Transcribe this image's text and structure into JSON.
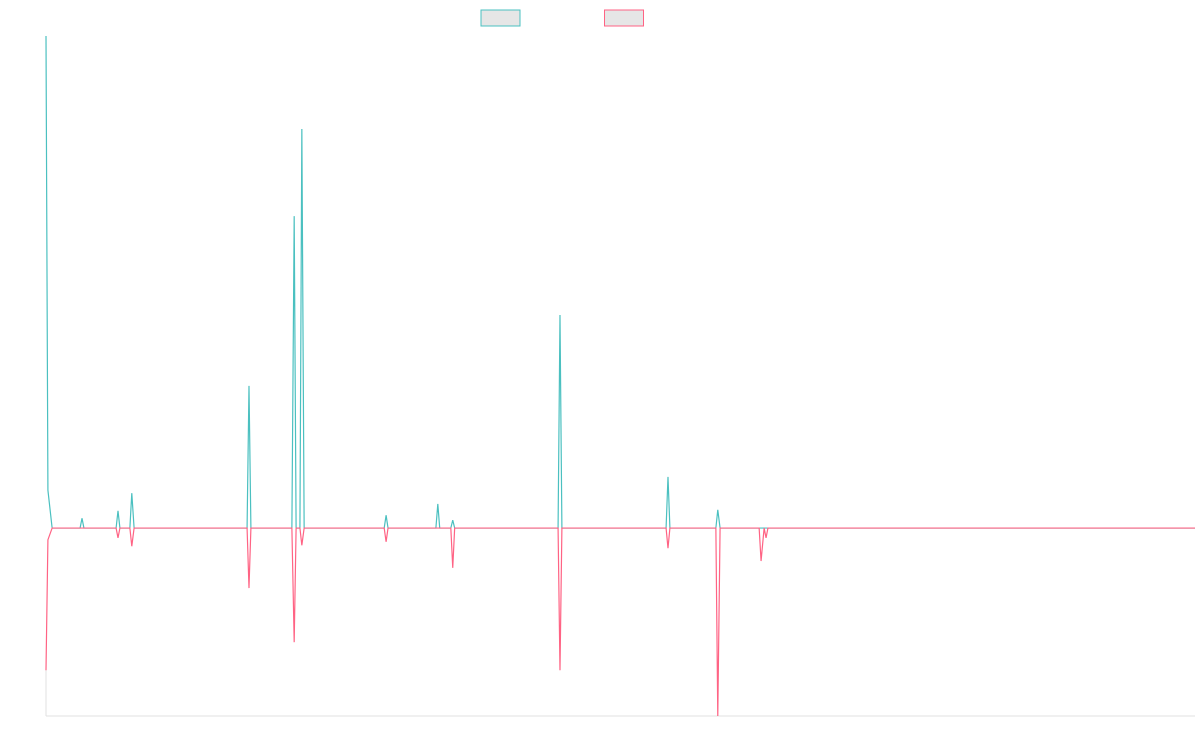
{
  "chart_data": {
    "type": "line",
    "xlim": [
      0,
      300
    ],
    "ylim": [
      -38.2,
      100
    ],
    "series": [
      {
        "color": "#4bc0c0",
        "x": [
          0,
          0.5,
          1.6,
          8.9,
          9.4,
          9.9,
          18.3,
          18.8,
          19.3,
          21.9,
          22.4,
          23,
          52.5,
          53,
          53.5,
          64.2,
          64.8,
          65.3,
          66.3,
          66.8,
          67.4,
          88.3,
          88.8,
          89.3,
          101.8,
          102.3,
          102.8,
          105.7,
          106.2,
          106.7,
          133.7,
          134.2,
          134.7,
          161.9,
          162.4,
          162.9,
          174.9,
          175.4,
          176,
          300
        ],
        "values": [
          100,
          7.7,
          0,
          0,
          2,
          0,
          0,
          3.5,
          0,
          0,
          7.1,
          0,
          0,
          28.9,
          0,
          0,
          63.4,
          0,
          0,
          81.1,
          0,
          0,
          2.6,
          0,
          0,
          4.9,
          0,
          0,
          1.6,
          0,
          0,
          43.3,
          0,
          0,
          10.4,
          0,
          0,
          3.7,
          0,
          0
        ]
      },
      {
        "color": "#ff6384",
        "x": [
          0,
          0.5,
          1.6,
          18.3,
          18.8,
          19.3,
          21.9,
          22.4,
          23,
          52.5,
          53,
          53.5,
          64.2,
          64.8,
          65.3,
          66.3,
          66.8,
          67.4,
          88.3,
          88.8,
          89.3,
          105.7,
          106.2,
          106.7,
          133.7,
          134.2,
          134.7,
          161.9,
          162.4,
          162.9,
          174.9,
          175.4,
          176,
          186.2,
          186.7,
          187.5,
          188,
          188.5,
          300
        ],
        "values": [
          -28.9,
          -2.4,
          0,
          0,
          -2,
          0,
          0,
          -3.7,
          0,
          0,
          -12.2,
          0,
          0,
          -23.2,
          0,
          0,
          -3.5,
          0,
          0,
          -2.8,
          0,
          0,
          -8.1,
          0,
          0,
          -28.9,
          0,
          0,
          -4.1,
          0,
          0,
          -38.2,
          0,
          0,
          -6.7,
          0,
          -2,
          0,
          0
        ]
      }
    ]
  }
}
